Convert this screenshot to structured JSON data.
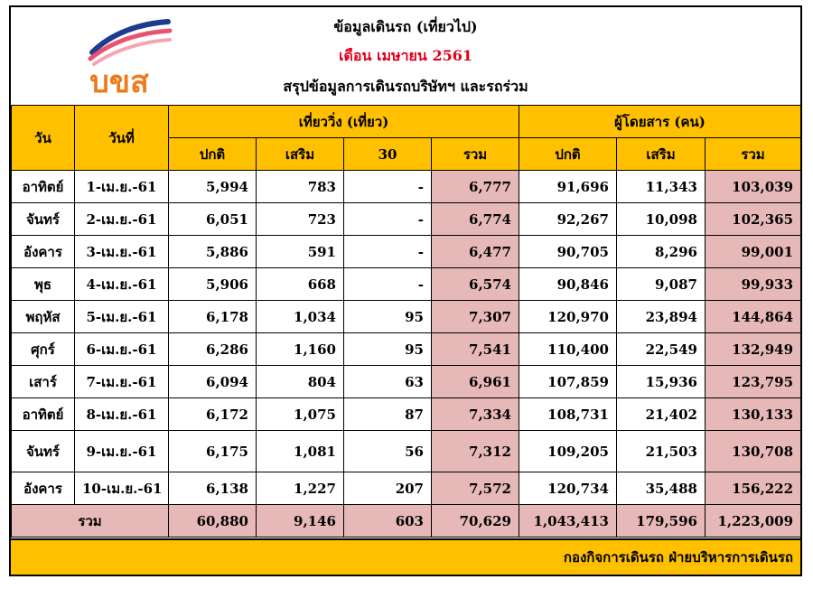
{
  "logo": {
    "text": "บขส",
    "primary_color": "#f07a1a",
    "stripe_colors": [
      "#1d3c8f",
      "#e8546f",
      "#f4a6b3"
    ]
  },
  "title": {
    "line1": "ข้อมูลเดินรถ (เที่ยวไป)",
    "line2": "เดือน เมษายน 2561",
    "line3": "สรุปข้อมูลการเดินรถบริษัทฯ และรถร่วม"
  },
  "headers": {
    "day": "วัน",
    "date": "วันที่",
    "trips_group": "เที่ยววิ่ง (เที่ยว)",
    "passengers_group": "ผู้โดยสาร (คน)",
    "regular": "ปกติ",
    "extra": "เสริม",
    "thirty": "30",
    "total": "รวม"
  },
  "rows": [
    {
      "day": "อาทิตย์",
      "date": "1-เม.ย.-61",
      "t_reg": "5,994",
      "t_ext": "783",
      "t_30": "-",
      "t_tot": "6,777",
      "p_reg": "91,696",
      "p_ext": "11,343",
      "p_tot": "103,039"
    },
    {
      "day": "จันทร์",
      "date": "2-เม.ย.-61",
      "t_reg": "6,051",
      "t_ext": "723",
      "t_30": "-",
      "t_tot": "6,774",
      "p_reg": "92,267",
      "p_ext": "10,098",
      "p_tot": "102,365"
    },
    {
      "day": "อังคาร",
      "date": "3-เม.ย.-61",
      "t_reg": "5,886",
      "t_ext": "591",
      "t_30": "-",
      "t_tot": "6,477",
      "p_reg": "90,705",
      "p_ext": "8,296",
      "p_tot": "99,001"
    },
    {
      "day": "พุธ",
      "date": "4-เม.ย.-61",
      "t_reg": "5,906",
      "t_ext": "668",
      "t_30": "-",
      "t_tot": "6,574",
      "p_reg": "90,846",
      "p_ext": "9,087",
      "p_tot": "99,933"
    },
    {
      "day": "พฤหัส",
      "date": "5-เม.ย.-61",
      "t_reg": "6,178",
      "t_ext": "1,034",
      "t_30": "95",
      "t_tot": "7,307",
      "p_reg": "120,970",
      "p_ext": "23,894",
      "p_tot": "144,864"
    },
    {
      "day": "ศุกร์",
      "date": "6-เม.ย.-61",
      "t_reg": "6,286",
      "t_ext": "1,160",
      "t_30": "95",
      "t_tot": "7,541",
      "p_reg": "110,400",
      "p_ext": "22,549",
      "p_tot": "132,949"
    },
    {
      "day": "เสาร์",
      "date": "7-เม.ย.-61",
      "t_reg": "6,094",
      "t_ext": "804",
      "t_30": "63",
      "t_tot": "6,961",
      "p_reg": "107,859",
      "p_ext": "15,936",
      "p_tot": "123,795"
    },
    {
      "day": "อาทิตย์",
      "date": "8-เม.ย.-61",
      "t_reg": "6,172",
      "t_ext": "1,075",
      "t_30": "87",
      "t_tot": "7,334",
      "p_reg": "108,731",
      "p_ext": "21,402",
      "p_tot": "130,133"
    },
    {
      "day": "จันทร์",
      "date": "9-เม.ย.-61",
      "t_reg": "6,175",
      "t_ext": "1,081",
      "t_30": "56",
      "t_tot": "7,312",
      "p_reg": "109,205",
      "p_ext": "21,503",
      "p_tot": "130,708"
    },
    {
      "day": "อังคาร",
      "date": "10-เม.ย.-61",
      "t_reg": "6,138",
      "t_ext": "1,227",
      "t_30": "207",
      "t_tot": "7,572",
      "p_reg": "120,734",
      "p_ext": "35,488",
      "p_tot": "156,222"
    }
  ],
  "totals": {
    "label": "รวม",
    "t_reg": "60,880",
    "t_ext": "9,146",
    "t_30": "603",
    "t_tot": "70,629",
    "p_reg": "1,043,413",
    "p_ext": "179,596",
    "p_tot": "1,223,009"
  },
  "footer": "กองกิจการเดินรถ ฝ่ายบริหารการเดินรถ",
  "colors": {
    "header_bg": "#ffc000",
    "total_bg": "#e6b8b7",
    "title_red": "#e0001b"
  }
}
